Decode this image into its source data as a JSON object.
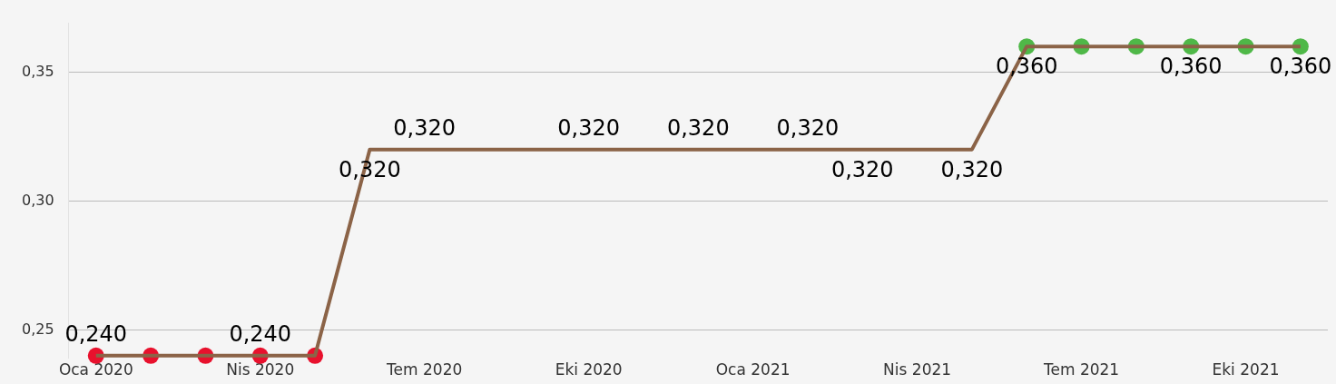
{
  "chart_data": {
    "type": "line",
    "categories": [
      "Oca 2020",
      null,
      null,
      "Nis 2020",
      null,
      null,
      "Tem 2020",
      null,
      null,
      "Eki 2020",
      null,
      null,
      "Oca 2021",
      null,
      null,
      "Nis 2021",
      null,
      null,
      "Tem 2021",
      null,
      null,
      "Eki 2021",
      null
    ],
    "series": [
      {
        "color": "#8b6347",
        "marker": "none",
        "values": [
          0.24,
          0.24,
          0.24,
          0.24,
          0.24,
          0.32,
          0.32,
          0.32,
          0.32,
          0.32,
          0.32,
          0.32,
          0.32,
          0.32,
          0.32,
          0.32,
          0.32,
          0.36,
          0.36,
          0.36,
          0.36,
          0.36,
          0.36
        ],
        "value_labels": [
          "0,240",
          null,
          null,
          "0,240",
          null,
          "0,320",
          "0,320",
          null,
          null,
          "0,320",
          null,
          "0,320",
          null,
          "0,320",
          "0,320",
          null,
          "0,320",
          "0,360",
          null,
          null,
          "0,360",
          null,
          "0,360"
        ]
      },
      {
        "type": "scatter",
        "color": "#e8112d",
        "values": [
          0.24,
          0.24,
          0.24,
          0.24,
          0.24,
          null,
          null,
          null,
          null,
          null,
          null,
          null,
          null,
          null,
          null,
          null,
          null,
          null,
          null,
          null,
          null,
          null,
          null
        ]
      },
      {
        "type": "scatter",
        "color": "#4fb848",
        "values": [
          null,
          null,
          null,
          null,
          null,
          null,
          null,
          null,
          null,
          null,
          null,
          null,
          null,
          null,
          null,
          null,
          null,
          0.36,
          0.36,
          0.36,
          0.36,
          0.36,
          0.36
        ]
      }
    ],
    "ylim": [
      0.239,
      0.369
    ],
    "yticks": [
      {
        "value": 0.25,
        "label": "0,25"
      },
      {
        "value": 0.3,
        "label": "0,30"
      },
      {
        "value": 0.35,
        "label": "0,35"
      }
    ],
    "grid": "y",
    "legend": false,
    "marker": "circle",
    "line_style": "solid"
  }
}
